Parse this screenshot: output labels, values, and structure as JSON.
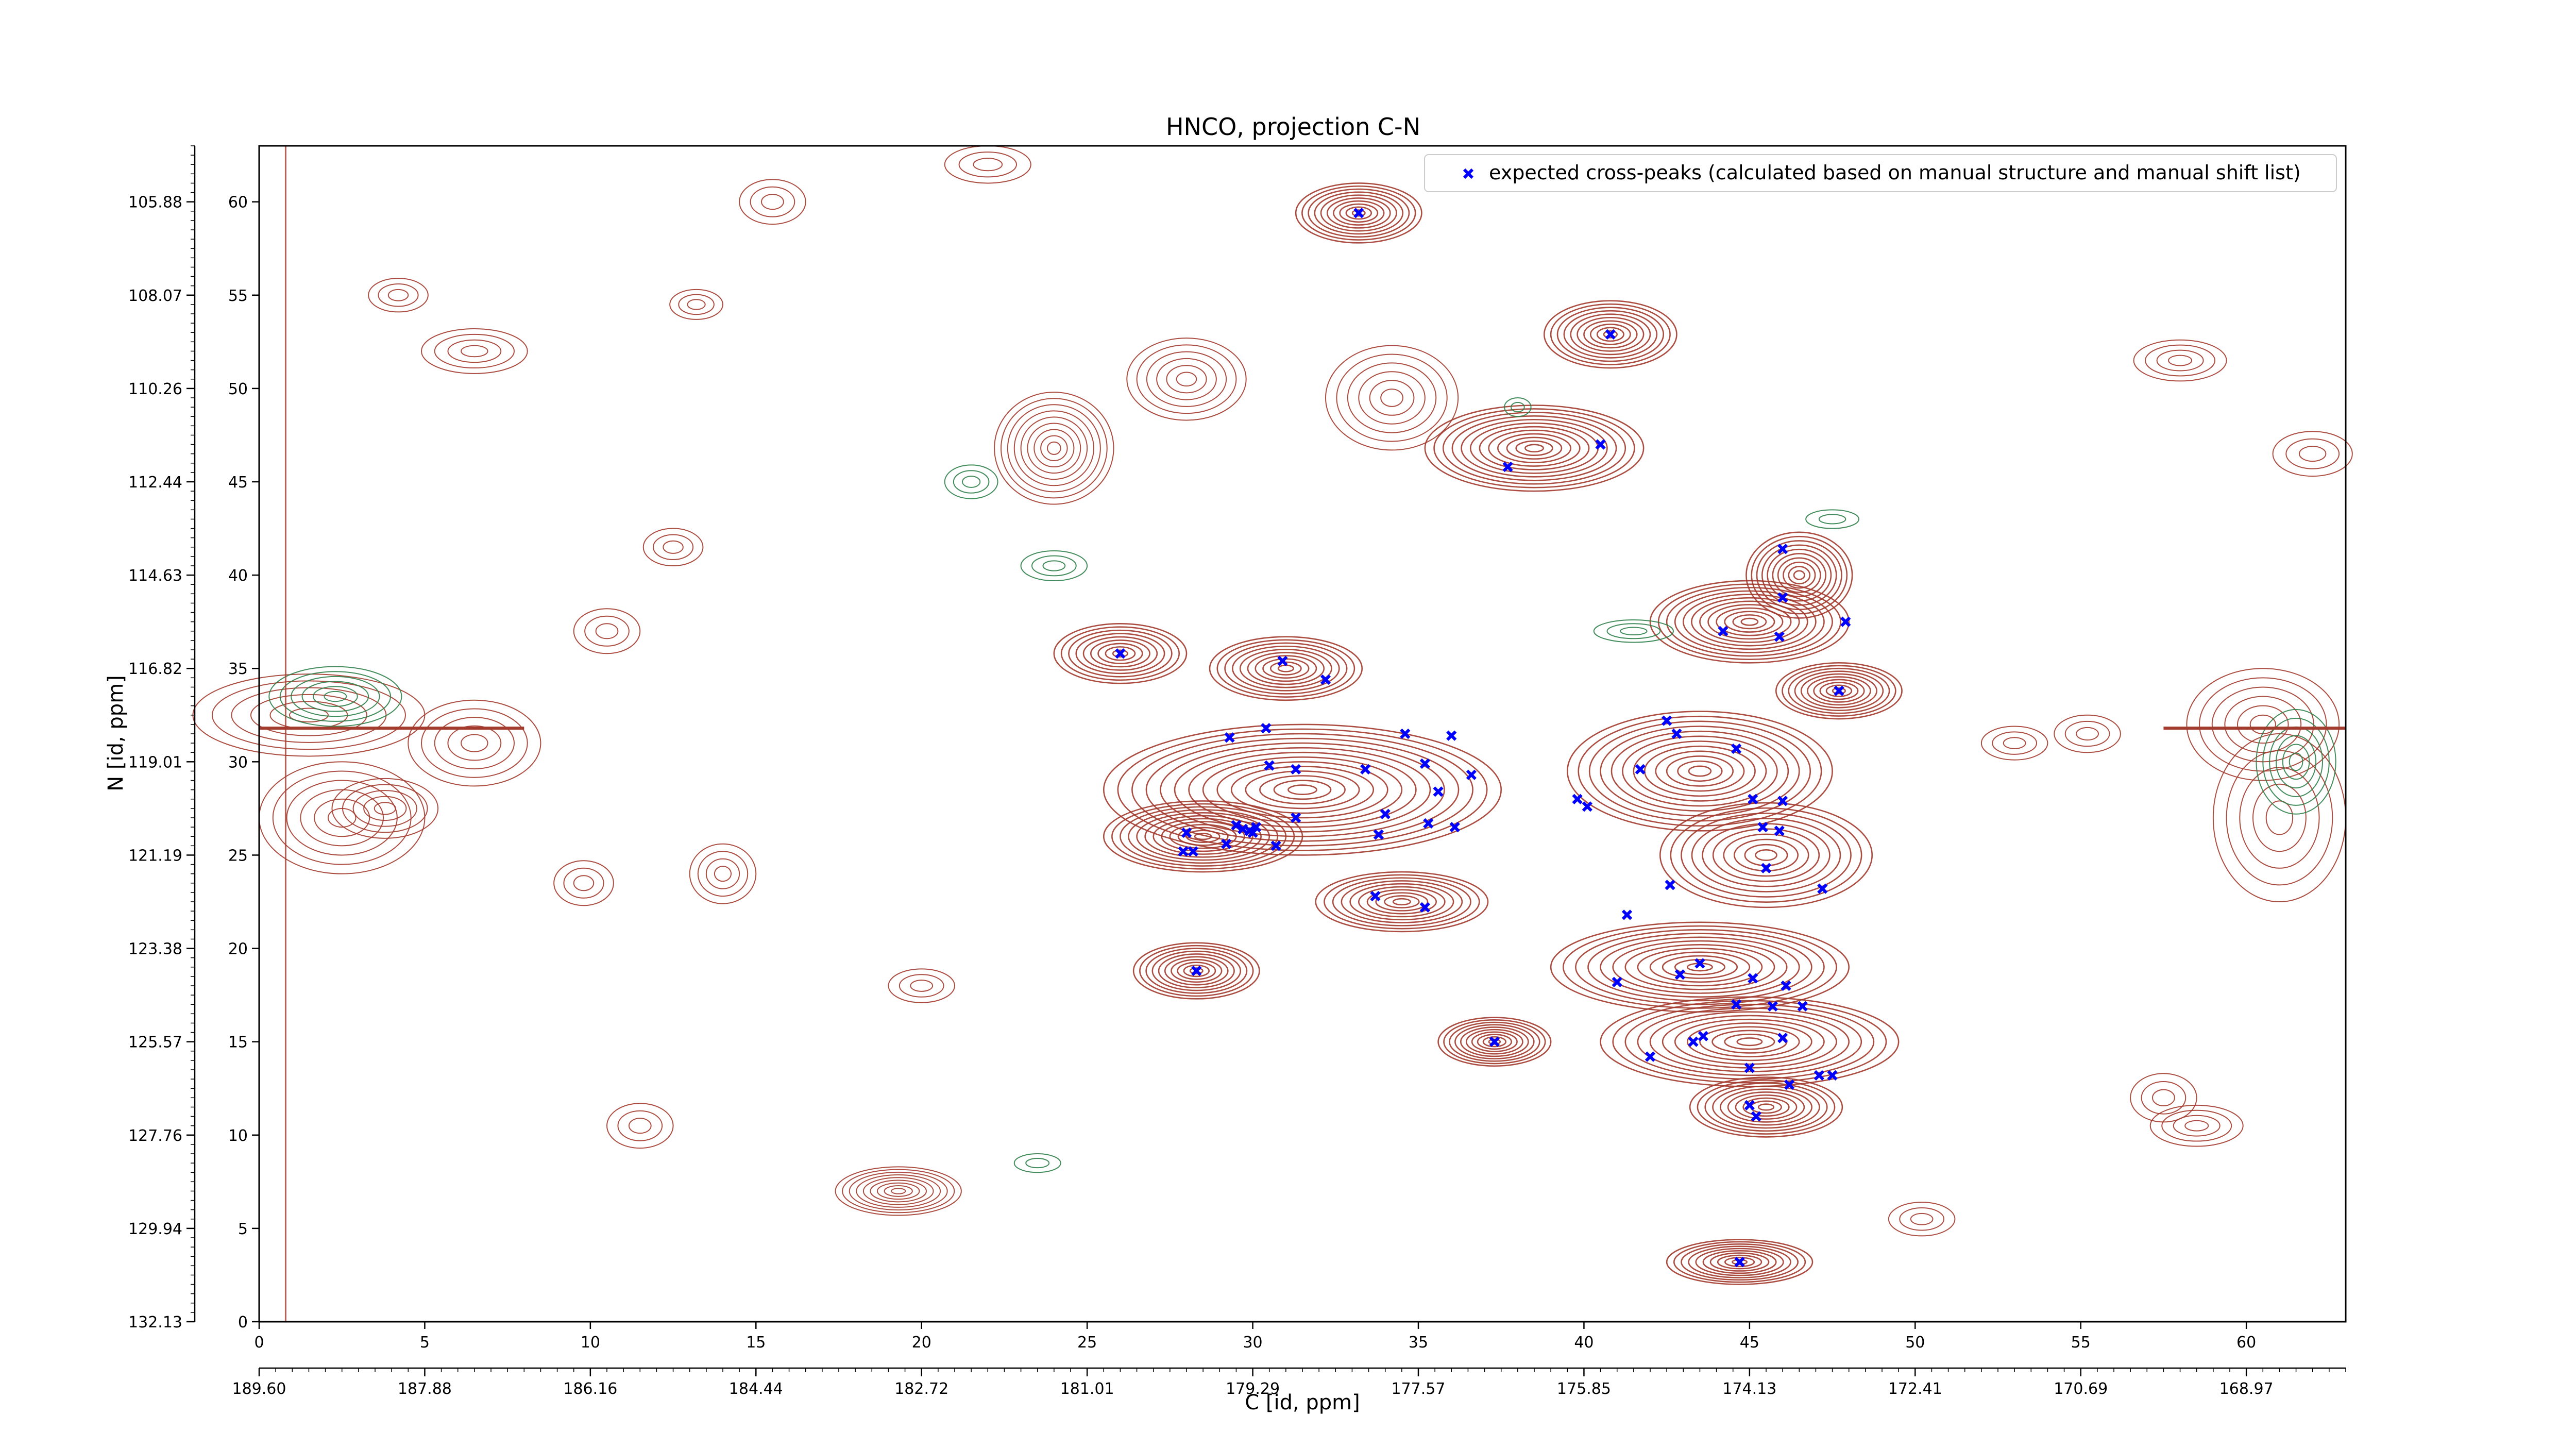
{
  "chart_data": {
    "type": "scatter",
    "title": "HNCO, projection C-N",
    "xlabel": "C [id, ppm]",
    "ylabel": "N [id, ppm]",
    "xlim": [
      0,
      63
    ],
    "ylim": [
      0,
      63
    ],
    "x_ticks": [
      0,
      5,
      10,
      15,
      20,
      25,
      30,
      35,
      40,
      45,
      50,
      55,
      60
    ],
    "y_ticks": [
      0,
      5,
      10,
      15,
      20,
      25,
      30,
      35,
      40,
      45,
      50,
      55,
      60
    ],
    "secondary_x_ticks": [
      {
        "pos": 0,
        "label": "189.60"
      },
      {
        "pos": 5,
        "label": "187.88"
      },
      {
        "pos": 10,
        "label": "186.16"
      },
      {
        "pos": 15,
        "label": "184.44"
      },
      {
        "pos": 20,
        "label": "182.72"
      },
      {
        "pos": 25,
        "label": "181.01"
      },
      {
        "pos": 30,
        "label": "179.29"
      },
      {
        "pos": 35,
        "label": "177.57"
      },
      {
        "pos": 40,
        "label": "175.85"
      },
      {
        "pos": 45,
        "label": "174.13"
      },
      {
        "pos": 50,
        "label": "172.41"
      },
      {
        "pos": 55,
        "label": "170.69"
      },
      {
        "pos": 60,
        "label": "168.97"
      }
    ],
    "secondary_y_ticks": [
      {
        "pos": 0,
        "label": "132.13"
      },
      {
        "pos": 5,
        "label": "129.94"
      },
      {
        "pos": 10,
        "label": "127.76"
      },
      {
        "pos": 15,
        "label": "125.57"
      },
      {
        "pos": 20,
        "label": "123.38"
      },
      {
        "pos": 25,
        "label": "121.19"
      },
      {
        "pos": 30,
        "label": "119.01"
      },
      {
        "pos": 35,
        "label": "116.82"
      },
      {
        "pos": 40,
        "label": "114.63"
      },
      {
        "pos": 45,
        "label": "112.44"
      },
      {
        "pos": 50,
        "label": "110.26"
      },
      {
        "pos": 55,
        "label": "108.07"
      },
      {
        "pos": 60,
        "label": "105.88"
      }
    ],
    "legend": "top-right",
    "series": [
      {
        "name": "expected cross-peaks (calculated based on manual structure and manual shift list)",
        "color": "#0000ff",
        "marker": "x",
        "points": [
          [
            33.2,
            59.4
          ],
          [
            40.8,
            52.9
          ],
          [
            37.7,
            45.8
          ],
          [
            40.5,
            47.0
          ],
          [
            26.0,
            35.8
          ],
          [
            30.9,
            35.4
          ],
          [
            32.2,
            34.4
          ],
          [
            29.3,
            31.3
          ],
          [
            30.4,
            31.8
          ],
          [
            30.5,
            29.8
          ],
          [
            31.3,
            29.6
          ],
          [
            33.4,
            29.6
          ],
          [
            34.6,
            31.5
          ],
          [
            36.0,
            31.4
          ],
          [
            35.2,
            29.9
          ],
          [
            36.6,
            29.3
          ],
          [
            34.0,
            27.2
          ],
          [
            35.6,
            28.4
          ],
          [
            35.3,
            26.7
          ],
          [
            36.1,
            26.5
          ],
          [
            33.8,
            26.1
          ],
          [
            31.3,
            27.0
          ],
          [
            30.1,
            26.5
          ],
          [
            29.5,
            26.6
          ],
          [
            29.7,
            26.4
          ],
          [
            29.9,
            26.3
          ],
          [
            30.0,
            26.2
          ],
          [
            28.0,
            26.2
          ],
          [
            29.2,
            25.6
          ],
          [
            30.7,
            25.5
          ],
          [
            27.9,
            25.2
          ],
          [
            28.2,
            25.2
          ],
          [
            33.7,
            22.8
          ],
          [
            35.2,
            22.2
          ],
          [
            28.3,
            18.8
          ],
          [
            37.3,
            15.0
          ],
          [
            41.0,
            18.2
          ],
          [
            40.1,
            27.6
          ],
          [
            39.8,
            28.0
          ],
          [
            41.7,
            29.6
          ],
          [
            42.5,
            32.2
          ],
          [
            42.8,
            31.5
          ],
          [
            44.6,
            30.7
          ],
          [
            45.1,
            28.0
          ],
          [
            46.0,
            27.9
          ],
          [
            45.4,
            26.5
          ],
          [
            45.9,
            26.3
          ],
          [
            45.5,
            24.3
          ],
          [
            42.6,
            23.4
          ],
          [
            47.2,
            23.2
          ],
          [
            41.3,
            21.8
          ],
          [
            42.9,
            18.6
          ],
          [
            43.5,
            19.2
          ],
          [
            45.1,
            18.4
          ],
          [
            46.1,
            18.0
          ],
          [
            44.6,
            17.0
          ],
          [
            45.7,
            16.9
          ],
          [
            46.6,
            16.9
          ],
          [
            43.3,
            15.0
          ],
          [
            43.6,
            15.3
          ],
          [
            46.0,
            15.2
          ],
          [
            42.0,
            14.2
          ],
          [
            45.0,
            13.6
          ],
          [
            46.2,
            12.7
          ],
          [
            47.1,
            13.2
          ],
          [
            47.5,
            13.2
          ],
          [
            45.0,
            11.6
          ],
          [
            45.2,
            11.0
          ],
          [
            44.7,
            3.2
          ],
          [
            46.0,
            41.4
          ],
          [
            46.0,
            38.8
          ],
          [
            44.2,
            37.0
          ],
          [
            45.9,
            36.7
          ],
          [
            47.9,
            37.5
          ],
          [
            47.7,
            33.8
          ]
        ]
      }
    ],
    "contour_levels": {
      "positive_color": "#a33a2e",
      "negative_color": "#2e8049"
    }
  }
}
